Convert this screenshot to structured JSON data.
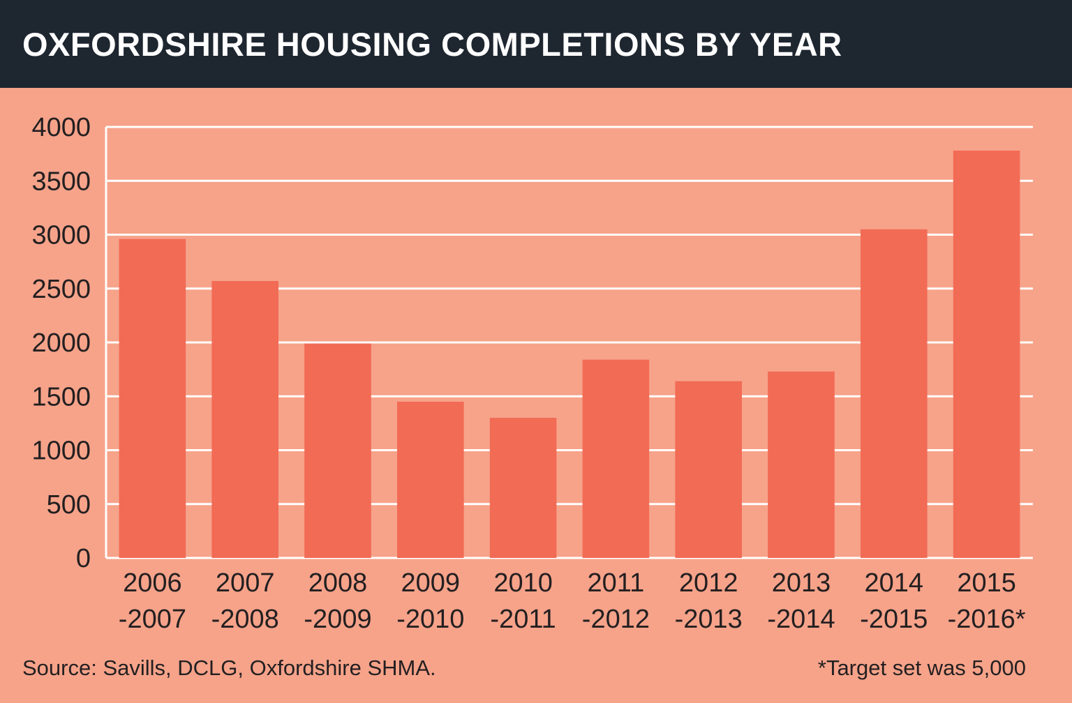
{
  "header": {
    "title": "OXFORDSHIRE HOUSING COMPLETIONS BY YEAR"
  },
  "footer": {
    "source": "Source: Savills, DCLG, Oxfordshire SHMA.",
    "note": "*Target set was 5,000"
  },
  "colors": {
    "background": "#f6a38a",
    "header_background": "#1e2630",
    "bar": "#f26b55",
    "gridline": "#ffffff",
    "text": "#231f20"
  },
  "chart_data": {
    "type": "bar",
    "title": "OXFORDSHIRE HOUSING COMPLETIONS BY YEAR",
    "xlabel": "",
    "ylabel": "",
    "categories": [
      [
        "2006",
        "-2007"
      ],
      [
        "2007",
        "-2008"
      ],
      [
        "2008",
        "-2009"
      ],
      [
        "2009",
        "-2010"
      ],
      [
        "2010",
        "-2011"
      ],
      [
        "2011",
        "-2012"
      ],
      [
        "2012",
        "-2013"
      ],
      [
        "2013",
        "-2014"
      ],
      [
        "2014",
        "-2015"
      ],
      [
        "2015",
        "-2016*"
      ]
    ],
    "values": [
      2960,
      2570,
      1990,
      1450,
      1300,
      1840,
      1640,
      1730,
      3050,
      3780
    ],
    "ylim": [
      0,
      4000
    ],
    "yticks": [
      0,
      500,
      1000,
      1500,
      2000,
      2500,
      3000,
      3500,
      4000
    ],
    "grid": true,
    "legend": "none"
  }
}
